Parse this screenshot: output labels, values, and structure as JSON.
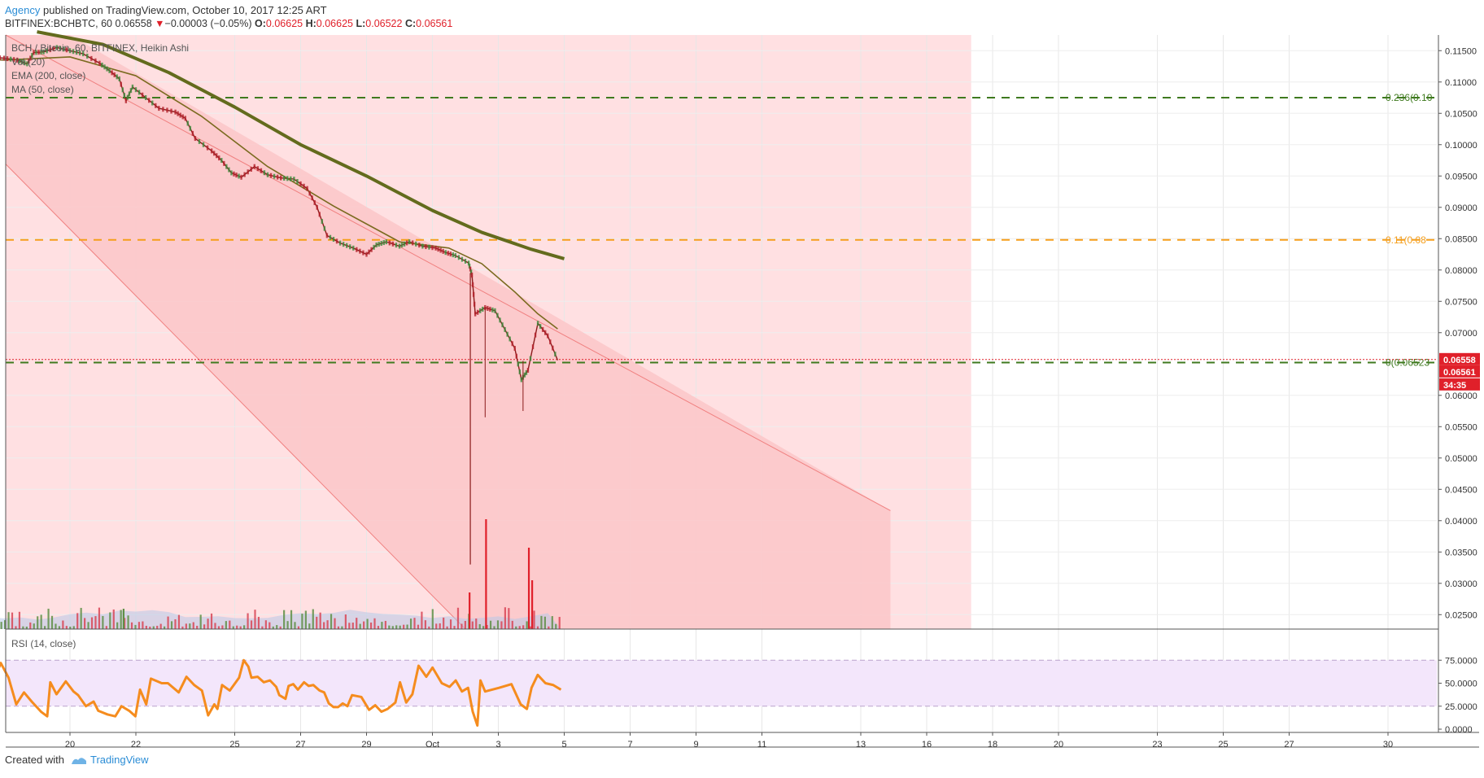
{
  "header": {
    "author": "Agency",
    "published": " published on TradingView.com, October 10, 2017 12:25 ART",
    "symbol": "BITFINEX:BCHBTC, 60",
    "last": "0.06558",
    "arrow": "▼",
    "change": "−0.00003 (−0.05%)",
    "o_label": "O:",
    "o": "0.06625",
    "h_label": "H:",
    "h": "0.06625",
    "l_label": "L:",
    "l": "0.06522",
    "c_label": "C:",
    "c": "0.06561"
  },
  "indicators": {
    "main": "BCH / Bitcoin, 60, BITFINEX, Heikin Ashi",
    "vol": "Vol (20)",
    "ema": "EMA (200, close)",
    "ma": "MA (50, close)",
    "rsi": "RSI (14, close)"
  },
  "footer": {
    "created_with": "Created with",
    "brand": "TradingView"
  },
  "chart_data": {
    "type": "line",
    "x_ticks": [
      "20",
      "22",
      "25",
      "27",
      "29",
      "Oct",
      "3",
      "5",
      "7",
      "9",
      "11",
      "13",
      "16",
      "18",
      "20",
      "23",
      "25",
      "27",
      "30"
    ],
    "price_ticks": [
      "0.11500",
      "0.11000",
      "0.10500",
      "0.10000",
      "0.09500",
      "0.09000",
      "0.08500",
      "0.08000",
      "0.07500",
      "0.07000",
      "0.06000",
      "0.05500",
      "0.05000",
      "0.04500",
      "0.04000",
      "0.03500",
      "0.03000",
      "0.02500"
    ],
    "rsi_ticks": [
      "75.0000",
      "50.0000",
      "25.0000",
      "0.0000"
    ],
    "ylim": [
      0.0227,
      0.1175
    ],
    "rsi_ylim": [
      0,
      100
    ],
    "price_labels": {
      "last": "0.06558",
      "close": "0.06561",
      "countdown": "34:35"
    },
    "fib_levels": [
      {
        "label": "0.236(0.10",
        "value": 0.1075,
        "color": "#3f7a1f"
      },
      {
        "label": "0.11(0.08",
        "value": 0.0848,
        "color": "#f59e1b"
      },
      {
        "label": "0(0.06523",
        "value": 0.06523,
        "color": "#3f7a1f"
      }
    ],
    "channel": {
      "upper": [
        [
          0.0,
          0.1215
        ],
        [
          24.9,
          0.0416
        ]
      ],
      "lower": [
        [
          -7.5,
          0.0969
        ],
        [
          12.0,
          0.0227
        ]
      ]
    },
    "series": [
      {
        "name": "Heikin Ashi",
        "points": [
          [
            -7.3,
            0.1192
          ],
          [
            -6.9,
            0.1188
          ],
          [
            -6.6,
            0.119
          ],
          [
            -6.1,
            0.118
          ],
          [
            -5.7,
            0.1168
          ],
          [
            -5.3,
            0.1142
          ],
          [
            -4.8,
            0.1128
          ],
          [
            -4.3,
            0.1126
          ],
          [
            -4.0,
            0.1135
          ],
          [
            -3.6,
            0.1127
          ],
          [
            -3.2,
            0.1133
          ],
          [
            -2.9,
            0.1142
          ],
          [
            -2.5,
            0.114
          ],
          [
            -2.0,
            0.1138
          ],
          [
            -1.6,
            0.1135
          ],
          [
            -1.3,
            0.1129
          ],
          [
            -1.1,
            0.1147
          ],
          [
            -0.8,
            0.1148
          ],
          [
            -0.4,
            0.1155
          ],
          [
            0.0,
            0.115
          ],
          [
            0.4,
            0.1145
          ],
          [
            0.9,
            0.113
          ],
          [
            1.2,
            0.1118
          ],
          [
            1.5,
            0.1105
          ],
          [
            1.7,
            0.107
          ],
          [
            1.9,
            0.1092
          ],
          [
            2.3,
            0.1075
          ],
          [
            2.7,
            0.1058
          ],
          [
            3.2,
            0.1052
          ],
          [
            3.5,
            0.1042
          ],
          [
            3.8,
            0.101
          ],
          [
            4.3,
            0.099
          ],
          [
            4.6,
            0.0975
          ],
          [
            4.9,
            0.0955
          ],
          [
            5.2,
            0.0948
          ],
          [
            5.6,
            0.0965
          ],
          [
            6.0,
            0.0952
          ],
          [
            6.4,
            0.0947
          ],
          [
            6.8,
            0.0945
          ],
          [
            7.2,
            0.093
          ],
          [
            7.5,
            0.09
          ],
          [
            7.8,
            0.0855
          ],
          [
            8.2,
            0.0843
          ],
          [
            8.6,
            0.0835
          ],
          [
            9.0,
            0.0825
          ],
          [
            9.3,
            0.084
          ],
          [
            9.6,
            0.0845
          ],
          [
            10.0,
            0.0838
          ],
          [
            10.3,
            0.0845
          ],
          [
            10.7,
            0.0838
          ],
          [
            11.1,
            0.0835
          ],
          [
            11.4,
            0.0828
          ],
          [
            11.7,
            0.0823
          ],
          [
            12.1,
            0.0811
          ],
          [
            12.2,
            0.0792
          ],
          [
            12.3,
            0.073
          ],
          [
            12.6,
            0.074
          ],
          [
            12.9,
            0.0735
          ],
          [
            13.2,
            0.0705
          ],
          [
            13.5,
            0.0675
          ],
          [
            13.7,
            0.0625
          ],
          [
            13.9,
            0.064
          ],
          [
            14.2,
            0.0715
          ],
          [
            14.5,
            0.0695
          ],
          [
            14.8,
            0.0656
          ]
        ]
      },
      {
        "name": "EMA (200, close)",
        "points": [
          [
            -1.0,
            0.118
          ],
          [
            1.0,
            0.116
          ],
          [
            3.0,
            0.1115
          ],
          [
            5.0,
            0.106
          ],
          [
            7.0,
            0.1
          ],
          [
            9.0,
            0.095
          ],
          [
            11.0,
            0.0895
          ],
          [
            12.5,
            0.086
          ],
          [
            14.0,
            0.0833
          ],
          [
            15.0,
            0.0818
          ]
        ]
      },
      {
        "name": "MA (50, close)",
        "points": [
          [
            -6.0,
            0.1185
          ],
          [
            -4.0,
            0.114
          ],
          [
            -2.0,
            0.1135
          ],
          [
            0.0,
            0.114
          ],
          [
            2.0,
            0.111
          ],
          [
            4.0,
            0.1045
          ],
          [
            6.0,
            0.0965
          ],
          [
            8.0,
            0.0902
          ],
          [
            10.0,
            0.0845
          ],
          [
            11.5,
            0.0835
          ],
          [
            12.5,
            0.081
          ],
          [
            13.5,
            0.0765
          ],
          [
            14.2,
            0.073
          ],
          [
            14.8,
            0.0706
          ]
        ]
      }
    ],
    "volume_spikes": [
      [
        -7.4,
        0.5
      ],
      [
        -7.3,
        1.0
      ],
      [
        -6.6,
        0.22
      ],
      [
        -3.9,
        0.15
      ],
      [
        1.6,
        0.25
      ],
      [
        12.1,
        0.45
      ],
      [
        12.6,
        1.35
      ],
      [
        13.9,
        1.0
      ],
      [
        14.0,
        0.6
      ]
    ],
    "rsi": [
      [
        -7.5,
        73
      ],
      [
        -7.0,
        56
      ],
      [
        -6.5,
        62
      ],
      [
        -6.0,
        60
      ],
      [
        -5.5,
        71
      ],
      [
        -5.2,
        91
      ],
      [
        -4.6,
        57
      ],
      [
        -3.5,
        48
      ],
      [
        -3.0,
        50
      ],
      [
        -2.6,
        27
      ],
      [
        -2.0,
        23
      ],
      [
        -1.3,
        33
      ],
      [
        -1.0,
        30
      ],
      [
        -0.5,
        41
      ],
      [
        0.0,
        39
      ],
      [
        0.5,
        53
      ],
      [
        1.0,
        73
      ],
      [
        1.5,
        61
      ],
      [
        2.0,
        76
      ],
      [
        2.6,
        56
      ],
      [
        2.9,
        27
      ],
      [
        3.2,
        73
      ],
      [
        3.6,
        55
      ],
      [
        4.0,
        72
      ],
      [
        4.5,
        56
      ],
      [
        5.0,
        27
      ],
      [
        5.5,
        40
      ],
      [
        6.0,
        30
      ],
      [
        6.6,
        19
      ],
      [
        7.0,
        14
      ],
      [
        7.2,
        51
      ],
      [
        7.6,
        38
      ],
      [
        8.2,
        52
      ],
      [
        8.7,
        41
      ],
      [
        9.0,
        37
      ],
      [
        9.5,
        25
      ],
      [
        10.0,
        30
      ],
      [
        10.3,
        20
      ],
      [
        10.9,
        16
      ],
      [
        11.4,
        14
      ],
      [
        11.8,
        25
      ],
      [
        12.3,
        20
      ],
      [
        12.7,
        14
      ],
      [
        13.0,
        43
      ],
      [
        13.4,
        27
      ],
      [
        13.7,
        55
      ],
      [
        14.4,
        50
      ],
      [
        14.8,
        50
      ],
      [
        15.5,
        40
      ],
      [
        16.0,
        57
      ],
      [
        16.5,
        48
      ],
      [
        17.0,
        42
      ],
      [
        17.4,
        15
      ],
      [
        17.8,
        27
      ],
      [
        18.0,
        22
      ],
      [
        18.3,
        48
      ],
      [
        18.8,
        42
      ],
      [
        19.4,
        56
      ],
      [
        19.7,
        75
      ],
      [
        20.0,
        68
      ],
      [
        20.2,
        56
      ],
      [
        20.6,
        57
      ],
      [
        21.0,
        51
      ],
      [
        21.4,
        53
      ],
      [
        21.8,
        46
      ],
      [
        22.0,
        37
      ],
      [
        22.4,
        33
      ],
      [
        22.6,
        47
      ],
      [
        22.9,
        49
      ],
      [
        23.2,
        43
      ],
      [
        23.6,
        51
      ],
      [
        23.9,
        47
      ],
      [
        24.2,
        48
      ],
      [
        24.6,
        42
      ],
      [
        24.9,
        40
      ],
      [
        25.2,
        28
      ],
      [
        25.5,
        24
      ],
      [
        25.8,
        24
      ],
      [
        26.1,
        28
      ],
      [
        26.4,
        25
      ],
      [
        26.7,
        37
      ],
      [
        27.0,
        36
      ],
      [
        27.3,
        35
      ],
      [
        27.8,
        21
      ],
      [
        28.2,
        26
      ],
      [
        28.6,
        19
      ],
      [
        29.0,
        22
      ],
      [
        29.5,
        29
      ],
      [
        29.8,
        51
      ],
      [
        30.2,
        29
      ],
      [
        30.6,
        38
      ],
      [
        31.0,
        69
      ],
      [
        31.5,
        57
      ],
      [
        31.9,
        67
      ],
      [
        32.5,
        50
      ],
      [
        33.0,
        46
      ],
      [
        33.4,
        53
      ],
      [
        33.8,
        41
      ],
      [
        34.2,
        45
      ],
      [
        34.5,
        19
      ],
      [
        34.8,
        4
      ],
      [
        35.0,
        53
      ],
      [
        35.3,
        41
      ],
      [
        36.2,
        45
      ],
      [
        37.0,
        49
      ],
      [
        37.6,
        27
      ],
      [
        38.0,
        22
      ],
      [
        38.3,
        45
      ],
      [
        38.7,
        59
      ],
      [
        39.2,
        50
      ],
      [
        39.7,
        48
      ],
      [
        40.2,
        43
      ]
    ]
  }
}
